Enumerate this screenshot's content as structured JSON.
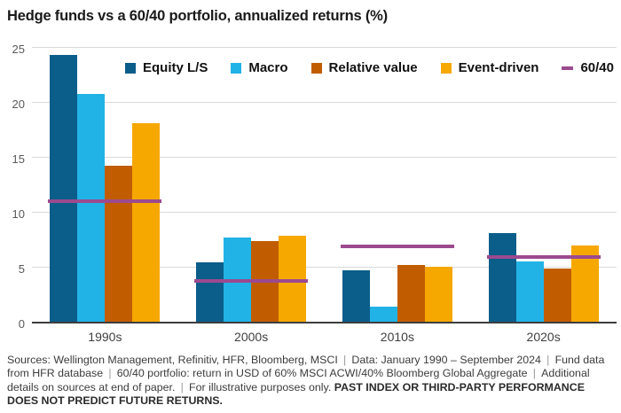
{
  "title": "Hedge funds vs a 60/40 portfolio, annualized returns (%)",
  "colors": {
    "equity": "#0b5d8a",
    "macro": "#22b3e6",
    "relative_value": "#c15d00",
    "event_driven": "#f6a800",
    "portfolio_6040": "#9c4a8f",
    "grid": "#d9d9d9",
    "axis": "#3d3d3d"
  },
  "chart_data": {
    "type": "bar",
    "title": "Hedge funds vs a 60/40 portfolio, annualized returns (%)",
    "categories": [
      "1990s",
      "2000s",
      "2010s",
      "2020s"
    ],
    "series": [
      {
        "name": "Equity L/S",
        "color_key": "equity",
        "values": [
          24.4,
          5.4,
          4.7,
          8.1
        ]
      },
      {
        "name": "Macro",
        "color_key": "macro",
        "values": [
          20.9,
          7.7,
          1.4,
          5.5
        ]
      },
      {
        "name": "Relative value",
        "color_key": "relative_value",
        "values": [
          14.3,
          7.4,
          5.2,
          4.9
        ]
      },
      {
        "name": "Event-driven",
        "color_key": "event_driven",
        "values": [
          18.2,
          7.9,
          5.0,
          7.0
        ]
      }
    ],
    "line_series": {
      "name": "60/40",
      "color_key": "portfolio_6040",
      "values": [
        11.0,
        3.7,
        6.9,
        5.9
      ]
    },
    "xlabel": "",
    "ylabel": "",
    "ylim": [
      0,
      25
    ],
    "yticks": [
      0,
      5,
      10,
      15,
      20,
      25
    ],
    "grid": true,
    "legend_position": "top"
  },
  "footer": {
    "segments": [
      {
        "text": "Sources: Wellington Management, Refinitiv, HFR, Bloomberg, MSCI",
        "bold": false
      },
      {
        "text": "Data: January 1990 – September 2024",
        "bold": false
      },
      {
        "text": "Fund data from HFR database",
        "bold": false
      },
      {
        "text": "60/40 portfolio: return in USD of 60% MSCI ACWI/40% Bloomberg Global Aggregate",
        "bold": false
      },
      {
        "text": "Additional details on sources at end of paper.",
        "bold": false
      },
      {
        "text": "For illustrative purposes only. ",
        "bold": false
      }
    ],
    "bold_text": "PAST INDEX OR THIRD-PARTY PERFORMANCE DOES NOT PREDICT FUTURE RETURNS.",
    "separator": "|"
  }
}
